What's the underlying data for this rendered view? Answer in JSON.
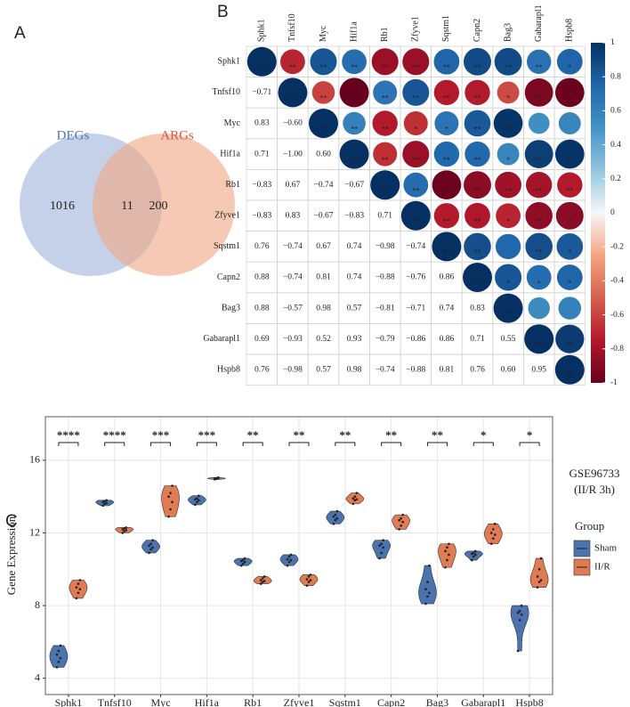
{
  "chart_data": [
    {
      "type": "venn",
      "panel_label": "A",
      "sets": [
        {
          "name": "DEGs",
          "color": "#9fb3da",
          "text_color": "#4d76b0"
        },
        {
          "name": "ARGs",
          "color": "#f0a582",
          "text_color": "#d9553f"
        }
      ],
      "values": [
        1016,
        11,
        200
      ]
    },
    {
      "type": "corrplot",
      "panel_label": "B",
      "labels": [
        "Sphk1",
        "Tnfsf10",
        "Myc",
        "Hif1a",
        "Rb1",
        "Zfyve1",
        "Sqstm1",
        "Capn2",
        "Bag3",
        "Gabarapl1",
        "Hspb8"
      ],
      "values": [
        [],
        [
          -0.71
        ],
        [
          0.83,
          -0.6
        ],
        [
          0.71,
          -1.0,
          0.6
        ],
        [
          -0.83,
          0.67,
          -0.74,
          -0.67
        ],
        [
          -0.83,
          0.83,
          -0.67,
          -0.83,
          0.71
        ],
        [
          0.76,
          -0.74,
          0.67,
          0.74,
          -0.98,
          -0.74
        ],
        [
          0.88,
          -0.74,
          0.81,
          0.74,
          -0.88,
          -0.76,
          0.86
        ],
        [
          0.88,
          -0.57,
          0.98,
          0.57,
          -0.81,
          -0.71,
          0.74,
          0.83
        ],
        [
          0.69,
          -0.93,
          0.52,
          0.93,
          -0.79,
          -0.86,
          0.86,
          0.71,
          0.55
        ],
        [
          0.76,
          -0.98,
          0.57,
          0.98,
          -0.74,
          -0.88,
          0.81,
          0.76,
          0.6,
          0.95
        ]
      ],
      "value_labels": [
        [],
        [
          "−0.71"
        ],
        [
          "0.83",
          "−0.60"
        ],
        [
          "0.71",
          "−1.00",
          "0.60"
        ],
        [
          "−0.83",
          "0.67",
          "−0.74",
          "−0.67"
        ],
        [
          "−0.83",
          "0.83",
          "−0.67",
          "−0.83",
          "0.71"
        ],
        [
          "0.76",
          "−0.74",
          "0.67",
          "0.74",
          "−0.98",
          "−0.74"
        ],
        [
          "0.88",
          "−0.74",
          "0.81",
          "0.74",
          "−0.88",
          "−0.76",
          "0.86"
        ],
        [
          "0.88",
          "−0.57",
          "0.98",
          "0.57",
          "−0.81",
          "−0.71",
          "0.74",
          "0.83"
        ],
        [
          "0.69",
          "−0.93",
          "0.52",
          "0.93",
          "−0.79",
          "−0.86",
          "0.86",
          "0.71",
          "0.55"
        ],
        [
          "0.76",
          "−0.98",
          "0.57",
          "0.98",
          "−0.74",
          "−0.88",
          "0.81",
          "0.76",
          "0.60",
          "0.95"
        ]
      ],
      "diagonal": [
        1,
        1,
        1,
        1,
        1,
        1,
        1,
        1,
        1,
        1,
        1
      ],
      "stars": [
        [
          "**",
          "**",
          "**",
          "**",
          "**",
          "**",
          "**",
          "**",
          "**",
          "**",
          "*"
        ],
        [
          "**",
          "**",
          "**",
          "**",
          "**",
          "**",
          "**",
          "*",
          "**",
          "**"
        ],
        [
          "**",
          "**",
          "**",
          "*",
          "*",
          "**",
          "**",
          null,
          null
        ],
        [
          "**",
          "**",
          "**",
          "**",
          "**",
          "*",
          "**",
          "**"
        ],
        [
          "**",
          "**",
          "**",
          "**",
          "**",
          "**",
          "**"
        ],
        [
          "**",
          "**",
          "**",
          "*",
          "**",
          "*"
        ],
        [
          "**",
          "**",
          null,
          "**",
          "*"
        ],
        [
          "**",
          "*",
          "*",
          "*"
        ],
        [
          "**",
          null,
          null
        ],
        [
          "**",
          "**"
        ],
        [
          "**"
        ]
      ],
      "colorscale": [
        [
          -1,
          "#67001f"
        ],
        [
          -0.75,
          "#b2182b"
        ],
        [
          -0.5,
          "#d6604d"
        ],
        [
          -0.25,
          "#f4a582"
        ],
        [
          0,
          "#f7f7f7"
        ],
        [
          0.25,
          "#92c5de"
        ],
        [
          0.5,
          "#4393c3"
        ],
        [
          0.75,
          "#2166ac"
        ],
        [
          1,
          "#053061"
        ]
      ],
      "clim": [
        -1,
        1
      ],
      "cticks": [
        1,
        0.8,
        0.6,
        0.4,
        0.2,
        0,
        -0.2,
        -0.4,
        -0.6,
        -0.8,
        -1
      ]
    },
    {
      "type": "violin",
      "panel_label": "C",
      "categories": [
        "Sphk1",
        "Tnfsf10",
        "Myc",
        "Hif1a",
        "Rb1",
        "Zfyve1",
        "Sqstm1",
        "Capn2",
        "Bag3",
        "Gabarapl1",
        "Hspb8"
      ],
      "series": [
        {
          "name": "Sham",
          "color": "#4b73ad",
          "values": [
            [
              4.6,
              4.9,
              5.1,
              5.3,
              5.5,
              5.8
            ],
            [
              13.5,
              13.6,
              13.65,
              13.7,
              13.75,
              13.8
            ],
            [
              10.9,
              11.1,
              11.2,
              11.3,
              11.4,
              11.6
            ],
            [
              13.55,
              13.7,
              13.8,
              13.85,
              13.9,
              14.05
            ],
            [
              10.2,
              10.3,
              10.4,
              10.45,
              10.5,
              10.6
            ],
            [
              10.2,
              10.4,
              10.5,
              10.55,
              10.7,
              10.8
            ],
            [
              12.5,
              12.7,
              12.8,
              12.9,
              13.0,
              13.2
            ],
            [
              10.6,
              10.9,
              11.2,
              11.3,
              11.4,
              11.6
            ],
            [
              8.1,
              8.5,
              8.7,
              8.9,
              9.3,
              10.2
            ],
            [
              10.5,
              10.7,
              10.8,
              10.85,
              10.9,
              11.0
            ],
            [
              5.5,
              7.2,
              7.5,
              7.6,
              7.7,
              8.0
            ]
          ]
        },
        {
          "name": "II/R",
          "color": "#e07b54",
          "values": [
            [
              8.4,
              8.7,
              8.9,
              9.0,
              9.2,
              9.4
            ],
            [
              12.0,
              12.1,
              12.15,
              12.2,
              12.25,
              12.3
            ],
            [
              12.9,
              13.3,
              13.7,
              14.0,
              14.2,
              14.6
            ],
            [
              14.95,
              14.98,
              15.0,
              15.0,
              15.02,
              15.05
            ],
            [
              9.2,
              9.3,
              9.35,
              9.4,
              9.5,
              9.6
            ],
            [
              9.1,
              9.3,
              9.4,
              9.45,
              9.6,
              9.7
            ],
            [
              13.6,
              13.8,
              13.85,
              13.9,
              14.0,
              14.2
            ],
            [
              12.2,
              12.4,
              12.6,
              12.7,
              12.8,
              13.0
            ],
            [
              10.1,
              10.5,
              10.8,
              11.0,
              11.2,
              11.4
            ],
            [
              11.4,
              11.7,
              11.9,
              12.0,
              12.2,
              12.5
            ],
            [
              9.0,
              9.3,
              9.4,
              9.6,
              10.0,
              10.6
            ]
          ]
        }
      ],
      "ylim": [
        3.1,
        18.4
      ],
      "yticks": [
        4,
        8,
        12,
        16
      ],
      "ylabel": "Gene Expression",
      "significance": [
        "****",
        "****",
        "***",
        "***",
        "**",
        "**",
        "**",
        "**",
        "**",
        "*",
        "*"
      ],
      "annotation": [
        "GSE96733",
        "(II/R 3h)"
      ],
      "legend_title": "Group",
      "grid": true
    }
  ]
}
